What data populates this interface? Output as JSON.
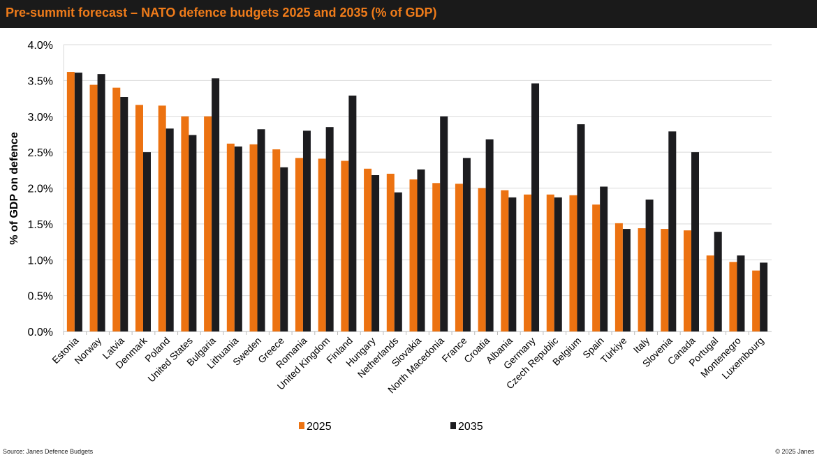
{
  "header": {
    "title": "Pre-summit forecast – NATO defence budgets 2025 and 2035 (% of GDP)"
  },
  "footer": {
    "source": "Source: Janes Defence Budgets",
    "copyright": "© 2025 Janes"
  },
  "colors": {
    "s2025": "#ec7211",
    "s2035": "#1c1c1f",
    "grid": "#d9d9d9"
  },
  "chart_data": {
    "type": "bar",
    "title": "Pre-summit forecast – NATO defence budgets 2025 and 2035 (% of GDP)",
    "xlabel": "",
    "ylabel": "% of GDP on defence",
    "ylim": [
      0,
      4.0
    ],
    "yticks": [
      "0.0%",
      "0.5%",
      "1.0%",
      "1.5%",
      "2.0%",
      "2.5%",
      "3.0%",
      "3.5%",
      "4.0%"
    ],
    "grid": true,
    "legend_position": "bottom",
    "categories": [
      "Estonia",
      "Norway",
      "Latvia",
      "Denmark",
      "Poland",
      "United States",
      "Bulgaria",
      "Lithuania",
      "Sweden",
      "Greece",
      "Romania",
      "United Kingdom",
      "Finland",
      "Hungary",
      "Netherlands",
      "Slovakia",
      "North Macedonia",
      "France",
      "Croatia",
      "Albania",
      "Germany",
      "Czech Republic",
      "Belgium",
      "Spain",
      "Türkiye",
      "Italy",
      "Slovenia",
      "Canada",
      "Portugal",
      "Montenegro",
      "Luxembourg"
    ],
    "series": [
      {
        "name": "2025",
        "values": [
          3.62,
          3.44,
          3.4,
          3.16,
          3.15,
          3.0,
          3.0,
          2.62,
          2.61,
          2.54,
          2.42,
          2.41,
          2.38,
          2.27,
          2.2,
          2.12,
          2.07,
          2.06,
          2.0,
          1.97,
          1.91,
          1.91,
          1.9,
          1.77,
          1.51,
          1.44,
          1.43,
          1.41,
          1.06,
          0.97,
          0.85
        ]
      },
      {
        "name": "2035",
        "values": [
          3.61,
          3.59,
          3.27,
          2.5,
          2.83,
          2.74,
          3.53,
          2.58,
          2.82,
          2.29,
          2.8,
          2.85,
          3.29,
          2.18,
          1.94,
          2.26,
          3.0,
          2.42,
          2.68,
          1.87,
          3.46,
          1.87,
          2.89,
          2.02,
          1.43,
          1.84,
          2.79,
          2.5,
          1.39,
          1.06,
          0.96
        ]
      }
    ]
  }
}
